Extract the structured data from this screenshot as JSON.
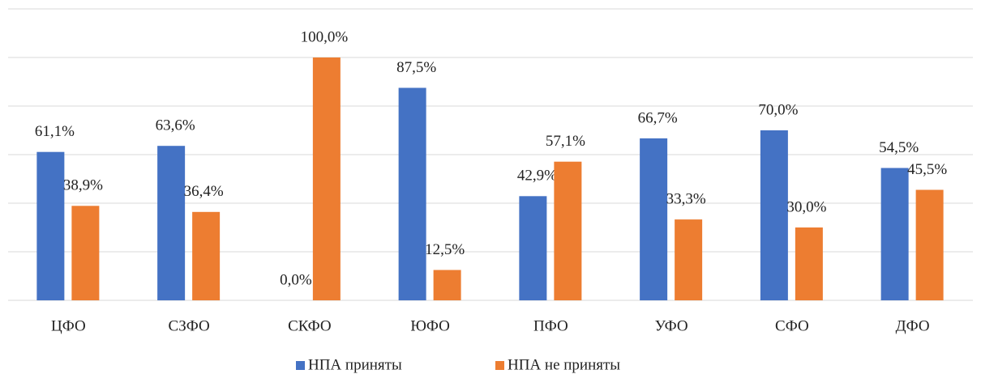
{
  "chart_data": {
    "type": "bar",
    "categories": [
      "ЦФО",
      "СЗФО",
      "СКФО",
      "ЮФО",
      "ПФО",
      "УФО",
      "СФО",
      "ДФО"
    ],
    "series": [
      {
        "name": "НПА приняты",
        "color": "#4472c4",
        "values": [
          61.1,
          63.6,
          0.0,
          87.5,
          42.9,
          66.7,
          70.0,
          54.5
        ],
        "value_labels": [
          "61,1%",
          "63,6%",
          "0,0%",
          "87,5%",
          "42,9%",
          "66,7%",
          "70,0%",
          "54,5%"
        ]
      },
      {
        "name": "НПА не приняты",
        "color": "#ed7d31",
        "values": [
          38.9,
          36.4,
          100.0,
          12.5,
          57.1,
          33.3,
          30.0,
          45.5
        ],
        "value_labels": [
          "38,9%",
          "36,4%",
          "100,0%",
          "12,5%",
          "57,1%",
          "33,3%",
          "30,0%",
          "45,5%"
        ]
      }
    ],
    "ylim": [
      0,
      120
    ],
    "yticks": [
      0,
      20,
      40,
      60,
      80,
      100,
      120
    ],
    "grid": true,
    "legend": "bottom"
  }
}
